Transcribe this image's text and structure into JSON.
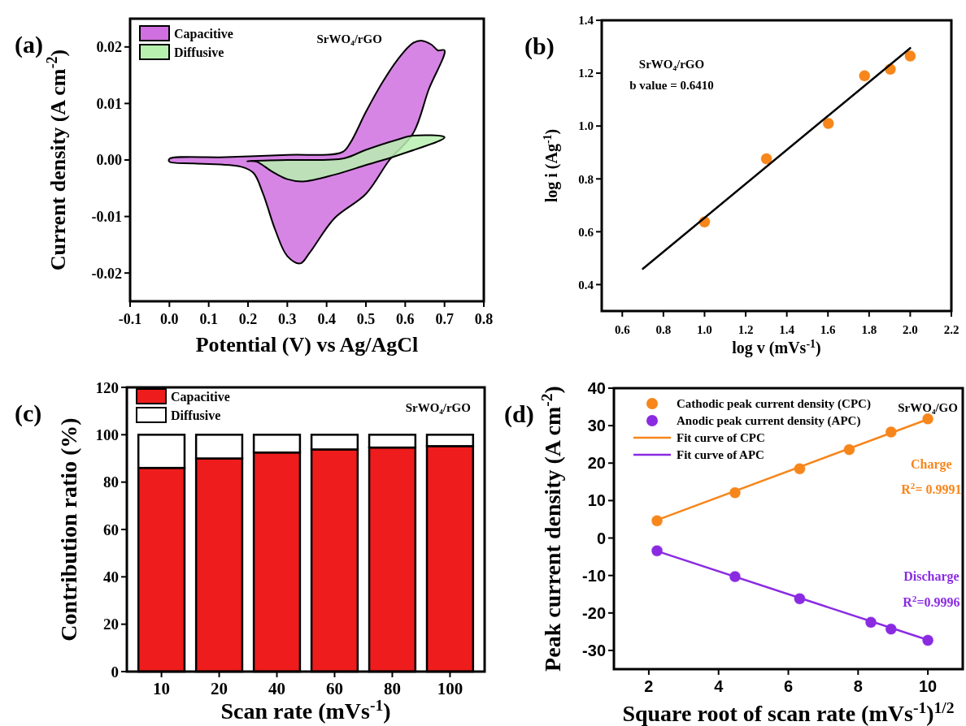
{
  "chart_data": [
    {
      "type": "area",
      "title": "(a)",
      "xlabel": "Potential (V) vs Ag/AgCl",
      "ylabel": "Current density (A cm$^{-2}$)",
      "annotations": [
        "SrWO₄/rGO"
      ],
      "legend": "top left",
      "xlim": [
        -0.1,
        0.8
      ],
      "xticks": [
        -0.1,
        {
          "value": 0,
          "label": "0.0"
        },
        0.1,
        0.2,
        0.3,
        0.4,
        0.5,
        0.6,
        0.7,
        0.8
      ],
      "ylim": [
        -0.025,
        0.025
      ],
      "yticks": [
        -0.02,
        -0.01,
        {
          "value": 0,
          "label": "0.00"
        },
        0.01,
        0.02
      ],
      "series": [
        {
          "name": "Capacitive",
          "color": "#d070e0",
          "x": [
            0,
            0.143,
            0.3,
            0.44,
            0.46,
            0.5,
            0.54,
            0.58,
            0.62,
            0.643,
            0.667,
            0.683,
            0.7,
            0.66,
            0.62,
            0.56,
            0.5,
            0.42,
            0.357,
            0.333,
            0.3,
            0.27,
            0.238,
            0.214,
            0.183,
            0.063,
            0
          ],
          "values": [
            0.0002,
            0.0005,
            0.0009,
            0.0014,
            0.003,
            0.0085,
            0.0135,
            0.0177,
            0.0207,
            0.0211,
            0.0204,
            0.0194,
            0.0194,
            0.0125,
            0.0047,
            0,
            -0.006,
            -0.0103,
            -0.0164,
            -0.0183,
            -0.017,
            -0.0125,
            -0.0059,
            -0.0023,
            -0.0012,
            -0.0006,
            -0.0003
          ]
        },
        {
          "name": "Diffusive",
          "color": "#b8f0b0",
          "x": [
            0.198,
            0.3,
            0.444,
            0.5,
            0.58,
            0.62,
            0.7,
            0.58,
            0.5,
            0.42,
            0.34,
            0.3,
            0.26,
            0.222
          ],
          "values": [
            -0.0002,
            0,
            0.0003,
            0.0018,
            0.0036,
            0.0043,
            0.004,
            0.0008,
            -0.0009,
            -0.0026,
            -0.0038,
            -0.0034,
            -0.002,
            -0.0003
          ]
        }
      ]
    },
    {
      "type": "scatter",
      "title": "(b)",
      "xlabel": "log v (mVs$^{-1}$)",
      "ylabel": "log i (Ag$^{-1}$)",
      "annotations": [
        "SrWO₄/rGO",
        "b value = 0.6410"
      ],
      "marker": "circle",
      "xlim": [
        0.5,
        2.2
      ],
      "xticks": [
        0.6,
        0.8,
        {
          "value": 1,
          "label": "1.0"
        },
        1.2,
        1.4,
        1.6,
        1.8,
        {
          "value": 2,
          "label": "2.0"
        },
        2.2
      ],
      "ylim": [
        0.3,
        1.4
      ],
      "yticks": [
        0.4,
        0.6,
        0.8,
        {
          "value": 1,
          "label": "1.0"
        },
        1.2,
        1.4
      ],
      "series": [
        {
          "color": "#f7861b",
          "x": [
            1.0,
            1.301,
            1.602,
            1.778,
            1.903,
            2.0
          ],
          "values": [
            0.637,
            0.876,
            1.01,
            1.19,
            1.215,
            1.265
          ]
        },
        {
          "type": "line",
          "marker": "none",
          "color": "#000000",
          "x": [
            0.7,
            2.0
          ],
          "values": [
            0.46,
            1.295
          ]
        }
      ]
    },
    {
      "type": "bar",
      "title": "(c)",
      "xlabel": "Scan rate (mVs$^{-1}$)",
      "ylabel": "Contribution ratio (%)",
      "annotations": [
        "SrWO₄/rGO"
      ],
      "legend": "top left",
      "stacked": true,
      "categories": [
        "10",
        "20",
        "40",
        "60",
        "80",
        "100"
      ],
      "ylim": [
        0,
        120
      ],
      "yticks": [
        0,
        20,
        40,
        60,
        80,
        100,
        120
      ],
      "series": [
        {
          "name": "Capacitive",
          "color": "#ee1c1c",
          "values": [
            86,
            90,
            92.5,
            93.8,
            94.6,
            95.2
          ]
        },
        {
          "name": "Diffusive",
          "color": "#ffffff",
          "values": [
            14,
            10,
            7.5,
            6.2,
            5.4,
            4.8
          ]
        }
      ]
    },
    {
      "type": "scatter",
      "title": "(d)",
      "xlabel": "Square root of scan rate (mVs$^{-1}$)$^{1/2}$",
      "ylabel": "Peak current density (A cm$^{-2}$)",
      "legend": "top left",
      "marker": "circle",
      "annotations": [
        "SrWO₄/GO",
        "Charge",
        "R$^{2}$= 0.9991",
        "Discharge",
        "R$^{2}$=0.9996"
      ],
      "xlim": [
        1,
        11
      ],
      "xticks": [
        2,
        4,
        6,
        8,
        10
      ],
      "ylim": [
        -35,
        40
      ],
      "yticks": [
        -30,
        -20,
        -10,
        0,
        10,
        20,
        30,
        40
      ],
      "series": [
        {
          "name": "Cathodic peak current density (CPC)",
          "color": "#f7861b",
          "x": [
            2.236,
            4.472,
            6.325,
            7.746,
            8.944,
            10
          ],
          "values": [
            4.6,
            12.1,
            18.5,
            23.6,
            28.3,
            31.8
          ]
        },
        {
          "name": "Anodic peak current density (APC)",
          "color": "#8a2be2",
          "x": [
            2.236,
            4.472,
            6.325,
            8.367,
            8.944,
            10
          ],
          "values": [
            -3.4,
            -10.3,
            -16.2,
            -22.5,
            -24.3,
            -27.3
          ]
        },
        {
          "type": "line",
          "marker": "none",
          "name": "Fit curve of CPC",
          "color": "#f7861b",
          "x": [
            2.236,
            10
          ],
          "values": [
            4.8,
            31.7
          ]
        },
        {
          "type": "line",
          "marker": "none",
          "name": "Fit curve of APC",
          "color": "#8a2be2",
          "x": [
            2.236,
            10
          ],
          "values": [
            -3.5,
            -27.2
          ]
        }
      ]
    }
  ]
}
